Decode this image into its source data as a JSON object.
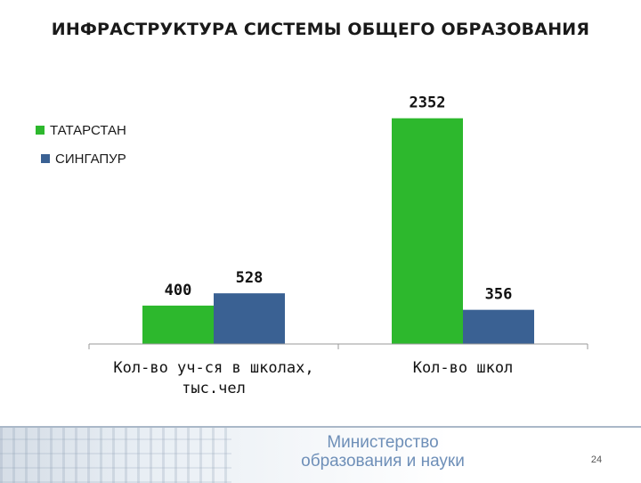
{
  "title": "ИНФРАСТРУКТУРА СИСТЕМЫ ОБЩЕГО ОБРАЗОВАНИЯ",
  "chart_data": {
    "type": "bar",
    "categories": [
      "Кол-во уч-ся в школах, тыс.чел",
      "Кол-во школ"
    ],
    "category_lines": [
      [
        "Кол-во уч-ся в школах,",
        "тыс.чел"
      ],
      [
        "Кол-во школ"
      ]
    ],
    "series": [
      {
        "name": "ТАТАРСТАН",
        "values": [
          400,
          2352
        ],
        "color": "#2db82d"
      },
      {
        "name": "СИНГАПУР",
        "values": [
          528,
          356
        ],
        "color": "#3a6193"
      }
    ],
    "ylim": [
      0,
      2600
    ],
    "grid": false,
    "legend_position": "top-left"
  },
  "footer": {
    "ministry_line1": "Министерство",
    "ministry_line2": "образования и науки",
    "page_number": "24"
  }
}
